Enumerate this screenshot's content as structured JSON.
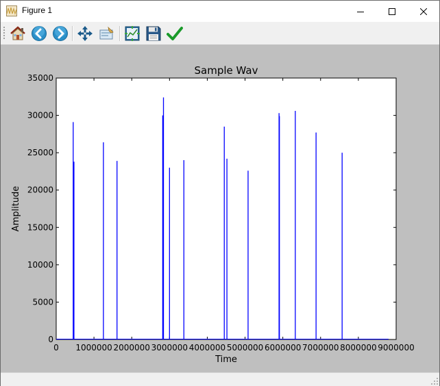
{
  "window": {
    "title": "Figure 1",
    "controls": [
      "minimize",
      "maximize",
      "close"
    ]
  },
  "toolbar": {
    "buttons": [
      {
        "name": "home-button",
        "icon": "home-icon",
        "label": "Home"
      },
      {
        "name": "back-button",
        "icon": "back-arrow-icon",
        "label": "Back"
      },
      {
        "name": "forward-button",
        "icon": "forward-arrow-icon",
        "label": "Forward"
      },
      {
        "name": "pan-button",
        "icon": "pan-move-icon",
        "label": "Pan"
      },
      {
        "name": "zoom-button",
        "icon": "zoom-rectangle-icon",
        "label": "Zoom"
      },
      {
        "name": "subplots-button",
        "icon": "configure-subplots-icon",
        "label": "Subplots"
      },
      {
        "name": "save-button",
        "icon": "floppy-disk-icon",
        "label": "Save"
      },
      {
        "name": "edit-button",
        "icon": "checkmark-icon",
        "label": "Edit"
      }
    ]
  },
  "colors": {
    "figure_bg": "#bfbfbf",
    "axes_bg": "#ffffff",
    "line": "#0000ff"
  },
  "chart_data": {
    "type": "line",
    "title": "Sample Wav",
    "xlabel": "Time",
    "ylabel": "Amplitude",
    "xlim": [
      0,
      9000000
    ],
    "ylim": [
      0,
      35000
    ],
    "xticks": [
      0,
      1000000,
      2000000,
      3000000,
      4000000,
      5000000,
      6000000,
      7000000,
      8000000,
      9000000
    ],
    "xtick_labels": [
      "0",
      "1000000",
      "2000000",
      "3000000",
      "4000000",
      "5000000",
      "6000000",
      "7000000",
      "8000000",
      "9000000"
    ],
    "yticks": [
      0,
      5000,
      10000,
      15000,
      20000,
      25000,
      30000,
      35000
    ],
    "ytick_labels": [
      "0",
      "5000",
      "10000",
      "15000",
      "20000",
      "25000",
      "30000",
      "35000"
    ],
    "grid": false,
    "series": [
      {
        "color": "#0000ff",
        "spikes": [
          {
            "x": 450000,
            "y": 29100
          },
          {
            "x": 470000,
            "y": 23800
          },
          {
            "x": 1250000,
            "y": 26400
          },
          {
            "x": 1610000,
            "y": 23900
          },
          {
            "x": 2820000,
            "y": 30000
          },
          {
            "x": 2840000,
            "y": 32400
          },
          {
            "x": 3000000,
            "y": 23000
          },
          {
            "x": 3380000,
            "y": 24000
          },
          {
            "x": 4450000,
            "y": 28500
          },
          {
            "x": 4520000,
            "y": 24200
          },
          {
            "x": 5080000,
            "y": 22600
          },
          {
            "x": 5900000,
            "y": 30300
          },
          {
            "x": 5910000,
            "y": 29900
          },
          {
            "x": 6330000,
            "y": 30600
          },
          {
            "x": 6880000,
            "y": 27700
          },
          {
            "x": 7570000,
            "y": 25000
          }
        ]
      }
    ]
  }
}
